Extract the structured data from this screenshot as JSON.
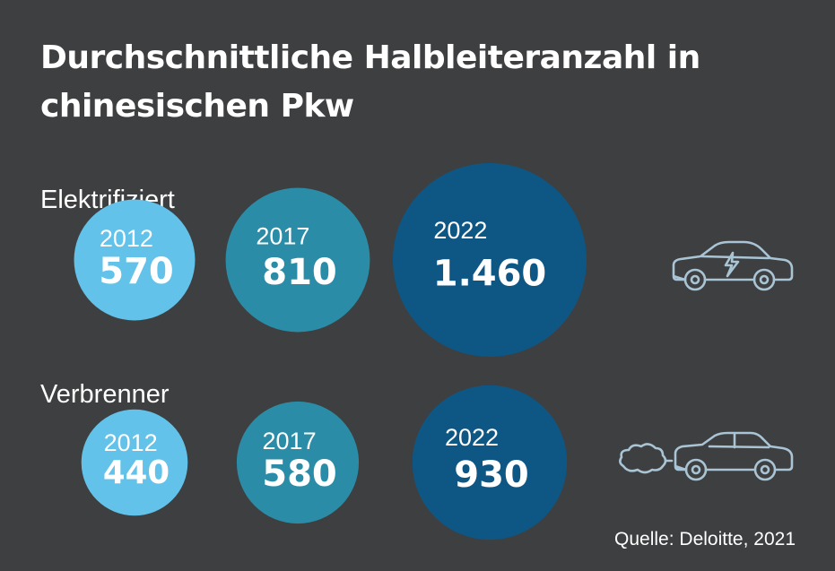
{
  "header": {
    "title_line1": "Durchschnittliche Halbleiteranzahl in",
    "title_line2": "chinesischen Pkw"
  },
  "source": "Quelle: Deloitte, 2021",
  "icons": {
    "electric": "electric-car-icon",
    "combustion": "combustion-car-exhaust-icon"
  },
  "colors": {
    "background": "#3e3f40",
    "year_2012": "#62c2ea",
    "year_2017": "#2a8ca6",
    "year_2022": "#0e5785",
    "icon_stroke": "#a9c4d4"
  },
  "chart_data": {
    "type": "bubble",
    "title": "Durchschnittliche Halbleiteranzahl in chinesischen Pkw",
    "categories": [
      "2012",
      "2017",
      "2022"
    ],
    "series": [
      {
        "name": "Elektrifiziert",
        "years": [
          "2012",
          "2017",
          "2022"
        ],
        "values": [
          570,
          810,
          1460
        ],
        "labels": [
          "570",
          "810",
          "1.460"
        ]
      },
      {
        "name": "Verbrenner",
        "years": [
          "2012",
          "2017",
          "2022"
        ],
        "values": [
          440,
          580,
          930
        ],
        "labels": [
          "440",
          "580",
          "930"
        ]
      }
    ]
  }
}
